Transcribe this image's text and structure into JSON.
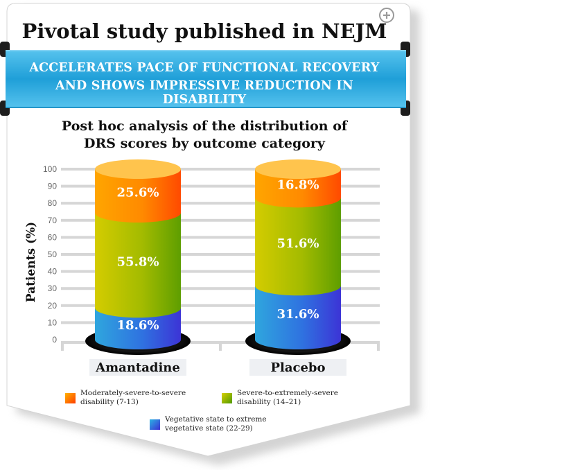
{
  "header": {
    "title": "Pivotal study published in NEJM",
    "banner_lines": [
      "ACCELERATES PACE OF FUNCTIONAL RECOVERY",
      "AND SHOWS IMPRESSIVE REDUCTION IN DISABILITY"
    ]
  },
  "colors": {
    "banner": "#29a7dd",
    "moderate": "#ff7a00",
    "severe": "#a6be00",
    "vegetative": "#2f6fe0",
    "grid": "#d6d6d6"
  },
  "icons": {
    "zoom": "zoom-in-icon"
  },
  "chart_data": {
    "type": "bar",
    "stacked": true,
    "title": "Post hoc analysis of the distribution of DRS scores by outcome category",
    "title_lines": [
      "Post hoc analysis of the distribution of",
      "DRS scores by outcome category"
    ],
    "ylabel": "Patients (%)",
    "ylim": [
      0,
      100
    ],
    "yticks": [
      0,
      10,
      20,
      30,
      40,
      50,
      60,
      70,
      80,
      90,
      100
    ],
    "grid": true,
    "legend_position": "bottom",
    "categories": [
      "Amantadine",
      "Placebo"
    ],
    "series": [
      {
        "name": "Vegetative state to extreme vegetative state (22-29)",
        "values": [
          18.6,
          31.6
        ],
        "labels": [
          "18.6%",
          "31.6%"
        ]
      },
      {
        "name": "Severe-to-extremely-severe disability (14–21)",
        "values": [
          55.8,
          51.6
        ],
        "labels": [
          "55.8%",
          "51.6%"
        ]
      },
      {
        "name": "Moderately-severe-to-severe disability (7-13)",
        "values": [
          25.6,
          16.8
        ],
        "labels": [
          "25.6%",
          "16.8%"
        ]
      }
    ],
    "legend": [
      {
        "key": "moderate",
        "lines": [
          "Moderately-severe-to-severe",
          "disability (7-13)"
        ]
      },
      {
        "key": "severe",
        "lines": [
          "Severe-to-extremely-severe",
          "disability (14–21)"
        ]
      },
      {
        "key": "vegetative",
        "lines": [
          "Vegetative state to extreme",
          "vegetative state (22-29)"
        ]
      }
    ]
  }
}
